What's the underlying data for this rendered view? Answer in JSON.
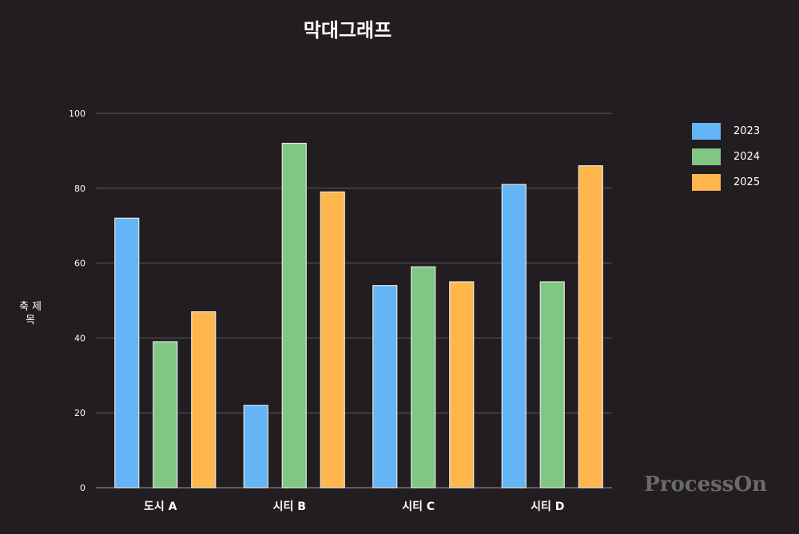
{
  "chart_data": {
    "type": "bar",
    "title": "막대그래프",
    "ylabel": "축 제목",
    "categories": [
      "도시 A",
      "시티 B",
      "시티 C",
      "시티 D"
    ],
    "series": [
      {
        "name": "2023",
        "color": "#64b5f6",
        "values": [
          72,
          22,
          54,
          81
        ]
      },
      {
        "name": "2024",
        "color": "#81c784",
        "values": [
          39,
          92,
          59,
          55
        ]
      },
      {
        "name": "2025",
        "color": "#ffb74d",
        "values": [
          47,
          79,
          55,
          86
        ]
      }
    ],
    "yticks": [
      "0",
      "20",
      "40",
      "60",
      "80",
      "100"
    ],
    "ylim": [
      0,
      100
    ],
    "grid": true,
    "legend_position": "right"
  },
  "watermark": "ProcessOn"
}
